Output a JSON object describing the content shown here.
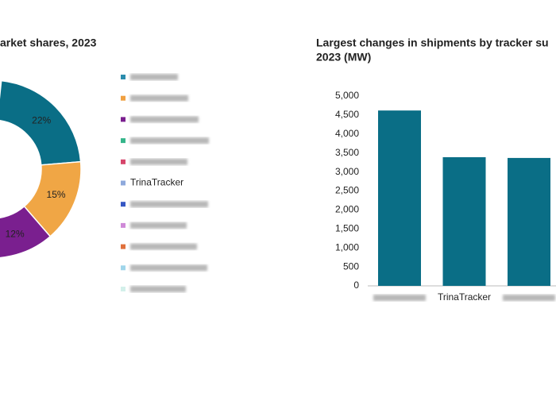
{
  "chart_data": [
    {
      "type": "pie",
      "title": "arket shares, 2023",
      "categories": [
        null,
        null,
        null,
        null,
        null,
        "TrinaTracker",
        null,
        null,
        null,
        null,
        null
      ],
      "colors": [
        "#2b8cad",
        "#f0a040",
        "#7a1f8f",
        "#35b58a",
        "#d6456b",
        "#8ea9dc",
        "#3557c4",
        "#cf8ad8",
        "#e0703c",
        "#9fd5ea",
        "#d3f0ea"
      ],
      "values": [
        22,
        15,
        12,
        null,
        null,
        null,
        null,
        null,
        null,
        null,
        null
      ],
      "value_labels": [
        "22%",
        "15%",
        "12%",
        null,
        null,
        null,
        null,
        null,
        null,
        null,
        null
      ],
      "segment_colors": [
        "#0a6e86",
        "#f0a645",
        "#7a1f8f"
      ]
    },
    {
      "type": "bar",
      "title": "Largest changes in shipments by tracker su",
      "subtitle": "2023 (MW)",
      "categories": [
        null,
        "TrinaTracker",
        null
      ],
      "values": [
        4620,
        3390,
        3370
      ],
      "color": "#0a6e86",
      "ylim": [
        0,
        5000
      ],
      "yticks": [
        0,
        500,
        {
          "value": 1000,
          "label": "1,000"
        },
        {
          "value": 1500,
          "label": "1,500"
        },
        {
          "value": 2000,
          "label": "2,000"
        },
        {
          "value": 2500,
          "label": "2,500"
        },
        {
          "value": 3000,
          "label": "3,000"
        },
        {
          "value": 3500,
          "label": "3,500"
        },
        {
          "value": 4000,
          "label": "4,000"
        },
        {
          "value": 4500,
          "label": "4,500"
        },
        {
          "value": 5000,
          "label": "5,000"
        }
      ]
    }
  ]
}
